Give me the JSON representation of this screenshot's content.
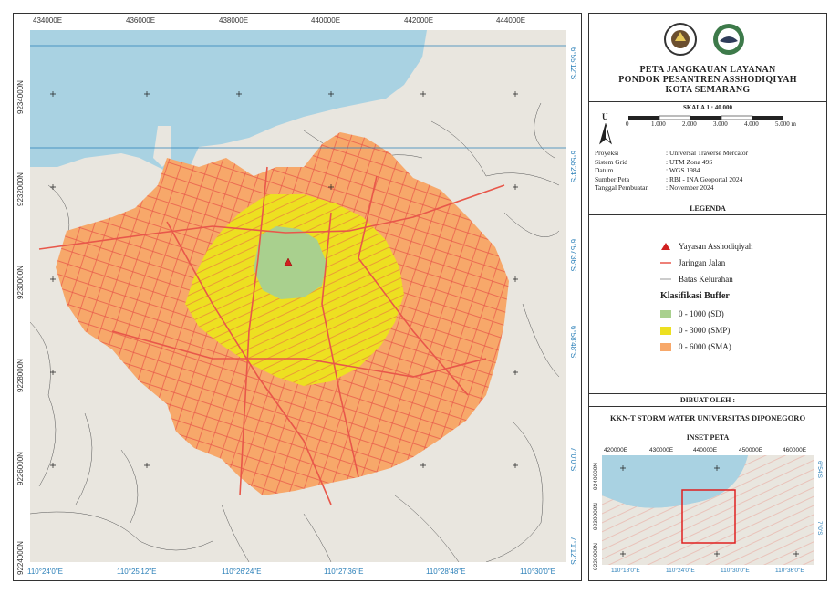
{
  "map": {
    "top_ticks": [
      "434000E",
      "436000E",
      "438000E",
      "440000E",
      "442000E",
      "444000E"
    ],
    "bottom_ticks": [
      "110°24'0\"E",
      "110°25'12\"E",
      "110°26'24\"E",
      "110°27'36\"E",
      "110°28'48\"E",
      "110°30'0\"E"
    ],
    "left_ticks": [
      "9234000N",
      "9232000N",
      "9230000N",
      "9228000N",
      "9226000N",
      "9224000N"
    ],
    "right_ticks": [
      "6°55'12\"S",
      "6°56'24\"S",
      "6°57'36\"S",
      "6°58'48\"S",
      "7°0'0\"S",
      "7°1'12\"S"
    ],
    "site_marker_label": "Yayasan Asshodiqiyah",
    "colors": {
      "sea": "#a9d2e2",
      "land": "#e9e6df",
      "buffer_sd": "#a9d08e",
      "buffer_smp": "#ede021",
      "buffer_sma": "#f7a86a",
      "roads": "#e8574a",
      "grid": "#2a7fb8"
    }
  },
  "panel": {
    "logos": [
      "university-seal-icon",
      "kkn-logo-icon"
    ],
    "title_lines": [
      "PETA JANGKAUAN LAYANAN",
      "PONDOK PESANTREN ASSHODIQIYAH",
      "KOTA SEMARANG"
    ],
    "scale_label": "SKALA 1 : 40.000",
    "north_label": "U",
    "scale_ticks": [
      "0",
      "1.000",
      "2.000",
      "3.000",
      "4.000",
      "5.000 m"
    ],
    "info_keys": [
      "Proyeksi",
      "Sistem Grid",
      "Datum",
      "Sumber Peta",
      "Tanggal Pembuatan"
    ],
    "info_values": [
      ": Universal Traverse Mercator",
      ": UTM Zona 49S",
      ": WGS 1984",
      ": RBI - INA Geoportal 2024",
      ": November 2024"
    ],
    "legend_header": "LEGENDA",
    "legend_items": [
      "Yayasan Asshodiqiyah",
      "Jaringan Jalan",
      "Batas Kelurahan"
    ],
    "buffer_title": "Klasifikasi Buffer",
    "buffer_items": [
      "0 - 1000 (SD)",
      "0 - 3000 (SMP)",
      "0 - 6000 (SMA)"
    ],
    "made_by_header": "DIBUAT OLEH :",
    "made_by": "KKN-T STORM WATER UNIVERSITAS DIPONEGORO",
    "inset_header": "INSET PETA",
    "inset_top_ticks": [
      "420000E",
      "430000E",
      "440000E",
      "450000E",
      "460000E"
    ],
    "inset_bottom_ticks": [
      "110°18'0\"E",
      "110°24'0\"E",
      "110°30'0\"E",
      "110°36'0\"E"
    ],
    "inset_left_ticks": [
      "9240000N",
      "9230000N",
      "9220000N"
    ],
    "inset_right_ticks": [
      "6°54'S",
      "7°0'S"
    ]
  }
}
